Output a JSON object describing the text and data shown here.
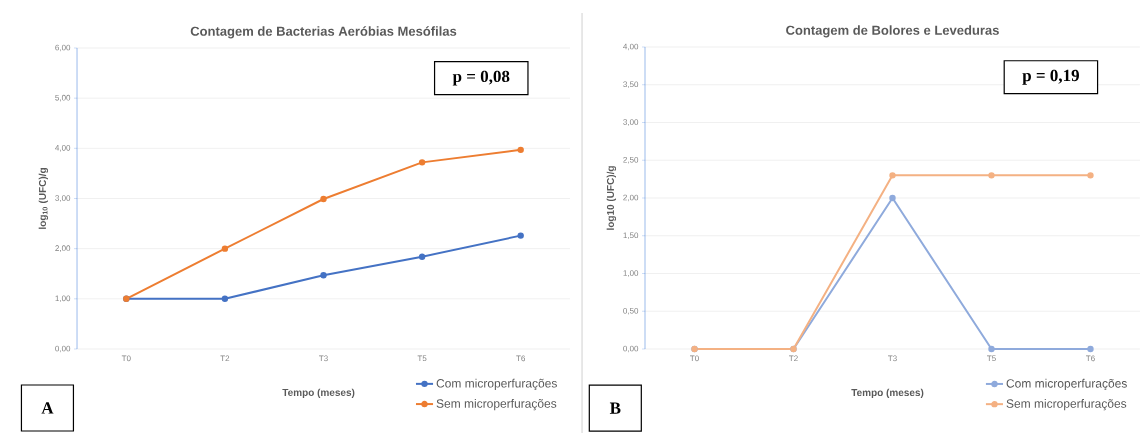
{
  "chart_data": [
    {
      "type": "line",
      "title": "Contagem de Bacterias Aeróbias Mesófilas",
      "xlabel": "Tempo (meses)",
      "ylabel": "log$_{10}$ (UFC)/g",
      "categories": [
        "T0",
        "T2",
        "T3",
        "T5",
        "T6"
      ],
      "series": [
        {
          "name": "Com microperfurações",
          "color": "#4472c4",
          "values": [
            1.0,
            1.0,
            1.47,
            1.84,
            2.26
          ]
        },
        {
          "name": "Sem microperfurações",
          "color": "#ed7d31",
          "values": [
            1.0,
            2.0,
            2.99,
            3.72,
            3.97
          ]
        }
      ],
      "ylim": [
        0,
        6
      ],
      "yticks": [
        {
          "value": 0,
          "label": "0,00"
        },
        {
          "value": 1,
          "label": "1,00"
        },
        {
          "value": 2,
          "label": "2,00"
        },
        {
          "value": 3,
          "label": "3,00"
        },
        {
          "value": 4,
          "label": "4,00"
        },
        {
          "value": 5,
          "label": "5,00"
        },
        {
          "value": 6,
          "label": "6,00"
        }
      ],
      "grid": "y",
      "legend": "bottom right",
      "marker": "circle",
      "annotations": [
        "p = 0,08",
        "A"
      ]
    },
    {
      "type": "line",
      "title": "Contagem de Bolores e Leveduras",
      "xlabel": "Tempo (meses)",
      "ylabel": "log10 (UFC)/g",
      "categories": [
        "T0",
        "T2",
        "T3",
        "T5",
        "T6"
      ],
      "series": [
        {
          "name": "Com microperfurações",
          "color": "#8faadc",
          "values": [
            0,
            0,
            2.0,
            0,
            0
          ]
        },
        {
          "name": "Sem microperfurações",
          "color": "#f4b183",
          "values": [
            0,
            0,
            2.3,
            2.3,
            2.3
          ]
        }
      ],
      "ylim": [
        0,
        4
      ],
      "yticks": [
        {
          "value": 0,
          "label": "0,00"
        },
        {
          "value": 0.5,
          "label": "0,50"
        },
        {
          "value": 1,
          "label": "1,00"
        },
        {
          "value": 1.5,
          "label": "1,50"
        },
        {
          "value": 2,
          "label": "2,00"
        },
        {
          "value": 2.5,
          "label": "2,50"
        },
        {
          "value": 3,
          "label": "3,00"
        },
        {
          "value": 3.5,
          "label": "3,50"
        },
        {
          "value": 4,
          "label": "4,00"
        }
      ],
      "grid": "y",
      "legend": "bottom right",
      "marker": "circle",
      "annotations": [
        "p = 0,19",
        "B"
      ]
    }
  ]
}
